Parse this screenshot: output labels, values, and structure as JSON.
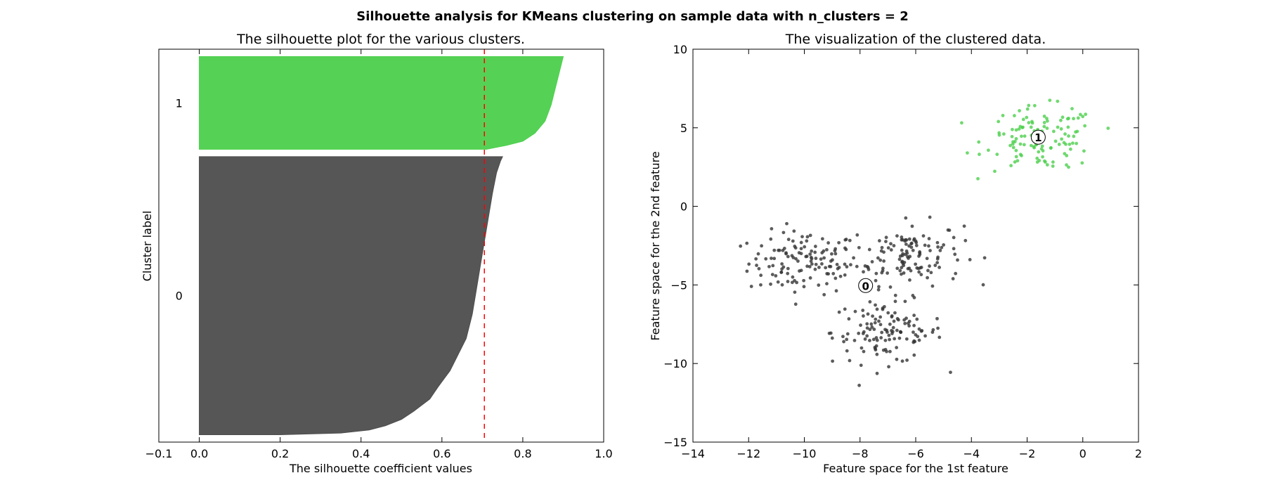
{
  "figure_title": "Silhouette analysis for KMeans clustering on sample data with n_clusters = 2",
  "chart_data": [
    {
      "type": "area",
      "title": "The silhouette plot for the various clusters.",
      "xlabel": "The silhouette coefficient values",
      "ylabel": "Cluster label",
      "xlim": [
        -0.1,
        1.0
      ],
      "ylim": [
        0,
        530
      ],
      "xticks": [
        "−0.1",
        "0.0",
        "0.2",
        "0.4",
        "0.6",
        "0.8",
        "1.0"
      ],
      "xtick_values": [
        -0.1,
        0.0,
        0.2,
        0.4,
        0.6,
        0.8,
        1.0
      ],
      "average_silhouette": 0.705,
      "average_line_color": "#ff0000",
      "clusters": [
        {
          "label": "0",
          "color": "#4d4d4d",
          "size": 375,
          "y_range": [
            10,
            385
          ],
          "profile_fraction": [
            0,
            0.006,
            0.017,
            0.032,
            0.055,
            0.084,
            0.128,
            0.171,
            0.23,
            0.288,
            0.346,
            0.433,
            0.52,
            0.608,
            0.695,
            0.782,
            0.869,
            0.942,
            0.985,
            1
          ],
          "profile_value": [
            0.2,
            0.35,
            0.42,
            0.46,
            0.5,
            0.53,
            0.57,
            0.59,
            0.62,
            0.64,
            0.66,
            0.675,
            0.685,
            0.695,
            0.705,
            0.715,
            0.725,
            0.735,
            0.745,
            0.75
          ]
        },
        {
          "label": "1",
          "color": "#4cd04c",
          "size": 125,
          "y_range": [
            395,
            520
          ],
          "profile_fraction": [
            0,
            0.043,
            0.087,
            0.174,
            0.304,
            0.478,
            0.652,
            0.826,
            0.913,
            1
          ],
          "profile_value": [
            0.71,
            0.76,
            0.8,
            0.83,
            0.855,
            0.87,
            0.88,
            0.89,
            0.895,
            0.9
          ]
        }
      ]
    },
    {
      "type": "scatter",
      "title": "The visualization of the clustered data.",
      "xlabel": "Feature space for the 1st feature",
      "ylabel": "Feature space for the 2nd feature",
      "xlim": [
        -14,
        2
      ],
      "ylim": [
        -15,
        10
      ],
      "xticks": [
        "−14",
        "−12",
        "−10",
        "−8",
        "−6",
        "−4",
        "−2",
        "0",
        "2"
      ],
      "xtick_values": [
        -14,
        -12,
        -10,
        -8,
        -6,
        -4,
        -2,
        0,
        2
      ],
      "yticks": [
        "−15",
        "−10",
        "−5",
        "0",
        "5",
        "10"
      ],
      "ytick_values": [
        -15,
        -10,
        -5,
        0,
        5,
        10
      ],
      "blobs": [
        {
          "cluster": 0,
          "center": [
            -10.0,
            -3.6
          ],
          "std": 1.0,
          "n": 125
        },
        {
          "cluster": 0,
          "center": [
            -6.3,
            -3.0
          ],
          "std": 1.0,
          "n": 125
        },
        {
          "cluster": 0,
          "center": [
            -7.0,
            -8.0
          ],
          "std": 1.0,
          "n": 125
        },
        {
          "cluster": 1,
          "center": [
            -1.5,
            4.3
          ],
          "std": 1.0,
          "n": 125
        }
      ],
      "cluster_colors": [
        "#333333",
        "#4cd04c"
      ],
      "centers": [
        {
          "label": "0",
          "x": -7.8,
          "y": -5.04
        },
        {
          "label": "1",
          "x": -1.6,
          "y": 4.4
        }
      ]
    }
  ]
}
